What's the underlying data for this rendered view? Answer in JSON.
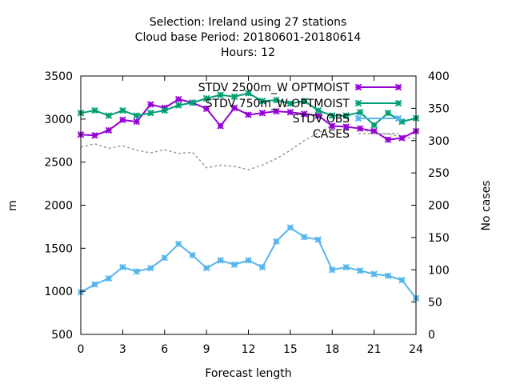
{
  "chart_data": {
    "type": "line",
    "title_lines": [
      "Selection: Ireland using    27 stations",
      "Cloud base   Period: 20180601-20180614",
      "Hours:  12"
    ],
    "xlabel": "Forecast length",
    "ylabel": "m",
    "y2label": "No cases",
    "xlim": [
      0,
      24
    ],
    "ylim": [
      500,
      3500
    ],
    "y2lim": [
      0,
      400
    ],
    "xticks": [
      0,
      3,
      6,
      9,
      12,
      15,
      18,
      21,
      24
    ],
    "yticks": [
      500,
      1000,
      1500,
      2000,
      2500,
      3000,
      3500
    ],
    "y2ticks": [
      0,
      50,
      100,
      150,
      200,
      250,
      300,
      350,
      400
    ],
    "legend_position": "top-right",
    "series": [
      {
        "name": "STDV 2500m_W OPTMOIST",
        "axis": "y",
        "color": "#9400d3",
        "marker": "x",
        "x": [
          0,
          1,
          2,
          3,
          4,
          5,
          6,
          7,
          8,
          9,
          10,
          11,
          12,
          13,
          14,
          15,
          16,
          17,
          18,
          19,
          20,
          21,
          22,
          23,
          24
        ],
        "values": [
          2820,
          2810,
          2870,
          2990,
          2970,
          3170,
          3130,
          3230,
          3190,
          3120,
          2920,
          3130,
          3050,
          3070,
          3090,
          3080,
          3060,
          3040,
          2920,
          2910,
          2890,
          2860,
          2760,
          2780,
          2860
        ]
      },
      {
        "name": "STDV 750m_W OPTMOIST",
        "axis": "y",
        "color": "#009e73",
        "marker": "x",
        "x": [
          0,
          1,
          2,
          3,
          4,
          5,
          6,
          7,
          8,
          9,
          10,
          11,
          12,
          13,
          14,
          15,
          16,
          17,
          18,
          19,
          20,
          21,
          22,
          23,
          24
        ],
        "values": [
          3070,
          3100,
          3040,
          3100,
          3040,
          3070,
          3100,
          3160,
          3190,
          3240,
          3280,
          3260,
          3300,
          3210,
          3220,
          3180,
          3210,
          3100,
          3040,
          3040,
          3080,
          2930,
          3070,
          2970,
          3010
        ]
      },
      {
        "name": "STDV OBS",
        "axis": "y",
        "color": "#56b4e9",
        "marker": "x",
        "x": [
          0,
          1,
          2,
          3,
          4,
          5,
          6,
          7,
          8,
          9,
          10,
          11,
          12,
          13,
          14,
          15,
          16,
          17,
          18,
          19,
          20,
          21,
          22,
          23,
          24
        ],
        "values": [
          990,
          1080,
          1150,
          1280,
          1230,
          1270,
          1390,
          1550,
          1420,
          1270,
          1360,
          1310,
          1360,
          1280,
          1580,
          1740,
          1630,
          1600,
          1250,
          1280,
          1240,
          1200,
          1180,
          1130,
          920
        ]
      },
      {
        "name": "CASES",
        "axis": "y2",
        "color": "#999999",
        "dashed": true,
        "x": [
          0,
          1,
          2,
          3,
          4,
          5,
          6,
          7,
          8,
          9,
          10,
          11,
          12,
          13,
          14,
          15,
          16,
          17,
          18,
          19,
          20,
          21,
          22,
          23,
          24
        ],
        "values": [
          290,
          295,
          288,
          292,
          285,
          281,
          286,
          280,
          282,
          258,
          262,
          260,
          255,
          262,
          272,
          285,
          300,
          312,
          323,
          322,
          318,
          312,
          310,
          306,
          303
        ]
      }
    ]
  }
}
